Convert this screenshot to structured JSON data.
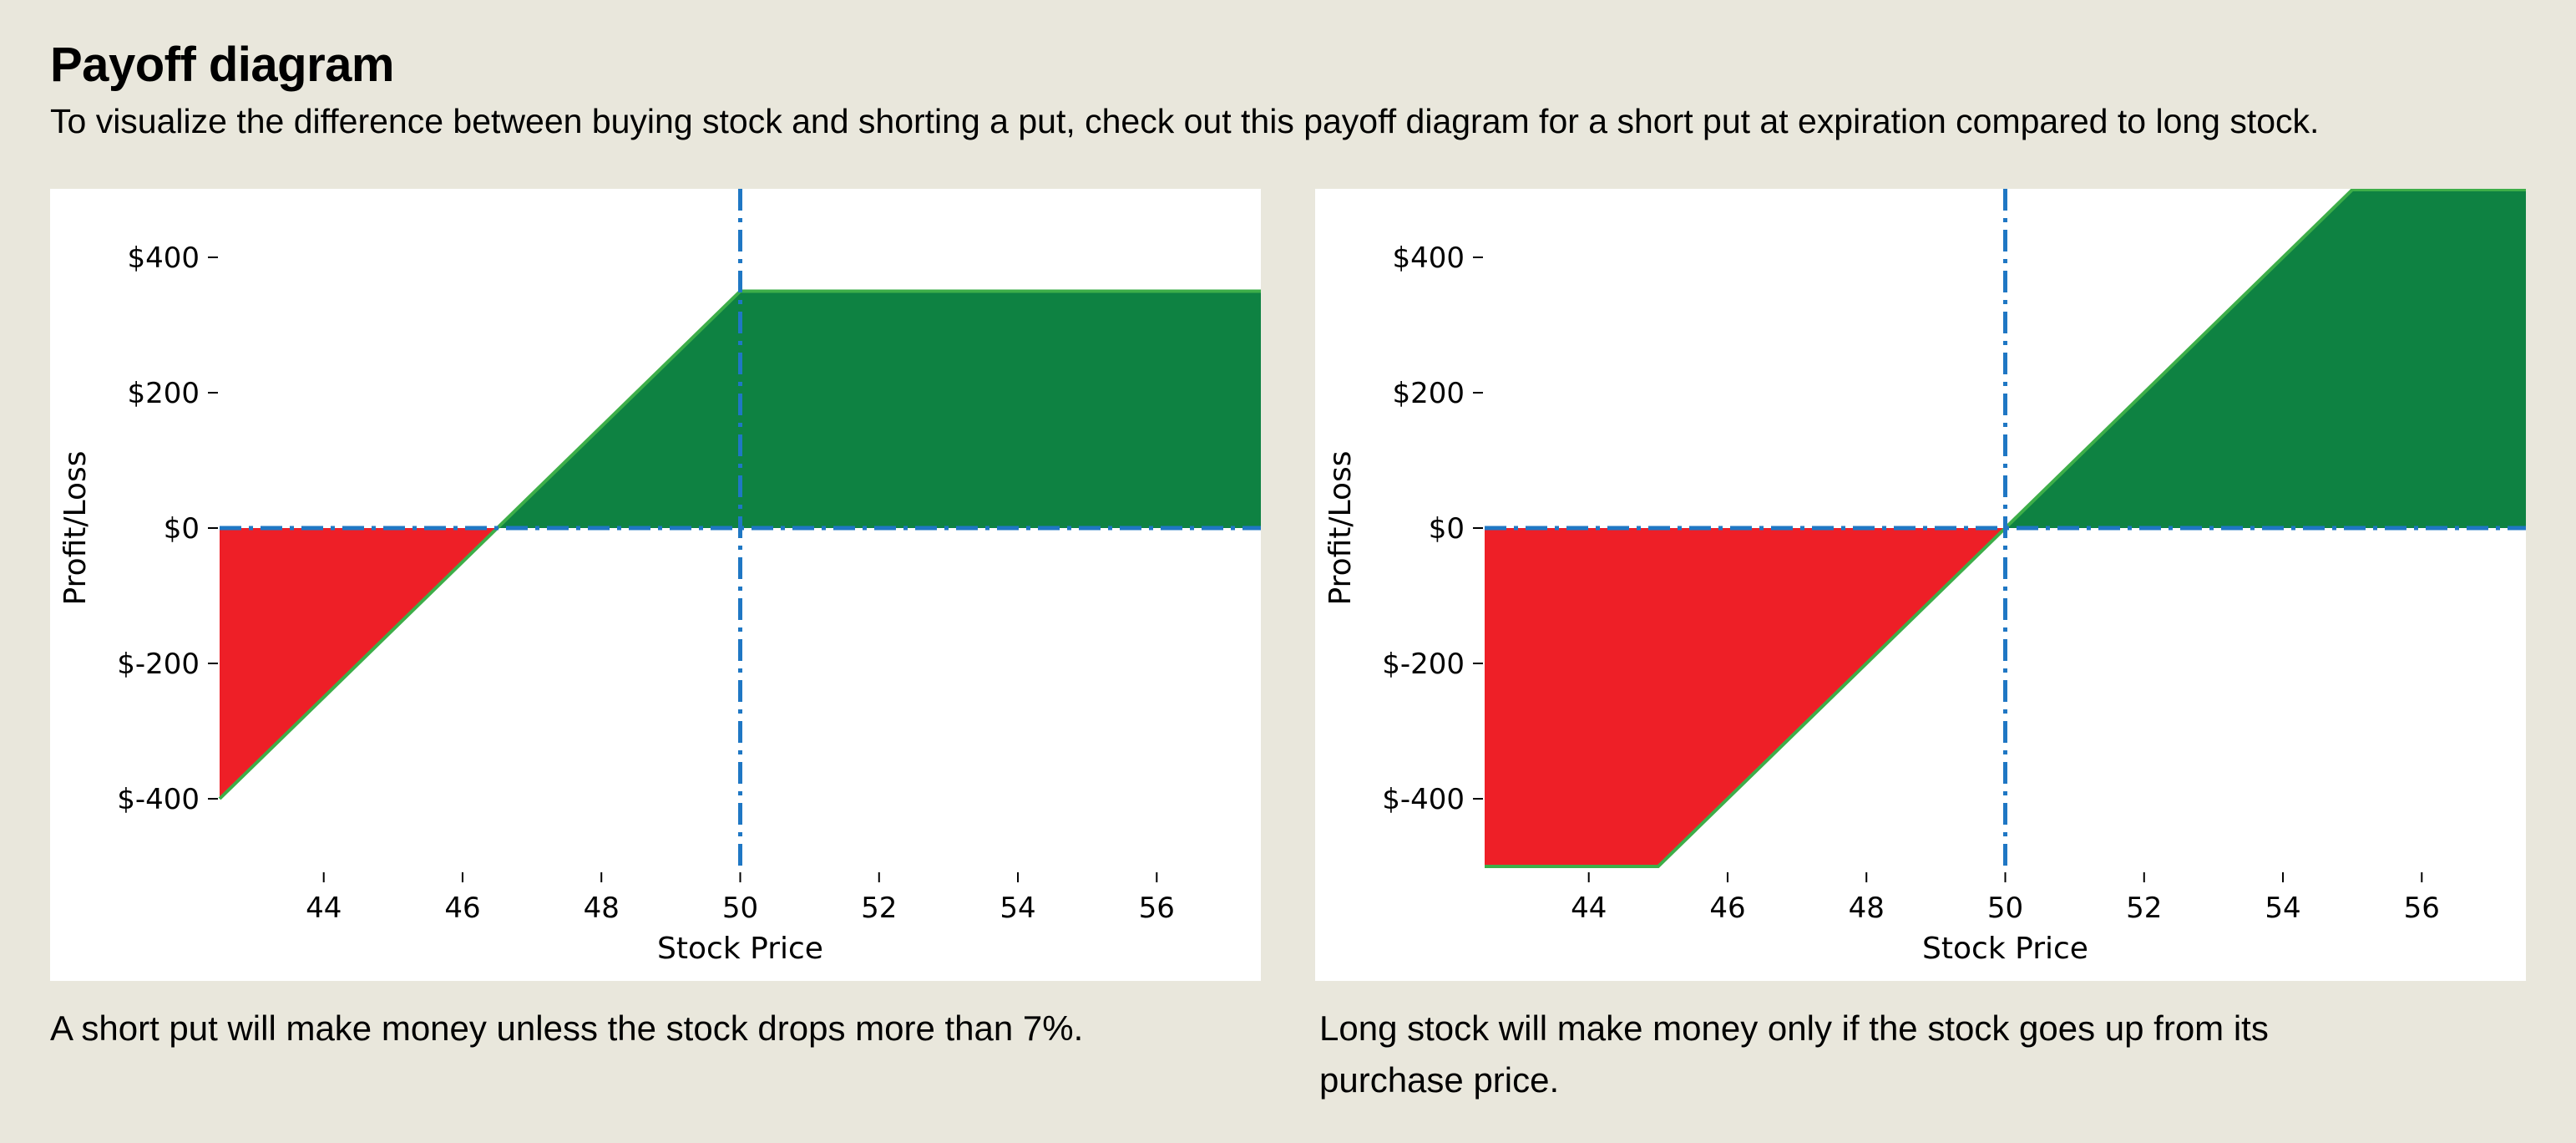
{
  "header": {
    "title": "Payoff diagram",
    "subtitle": "To visualize the difference between buying stock and shorting a put, check out this payoff diagram for a short put at expiration compared to long stock."
  },
  "colors": {
    "background": "#e9e7dc",
    "profit": "#0e8242",
    "loss": "#ee1f27",
    "payoff_line": "#3dae49",
    "reference_line": "#1f77c4"
  },
  "chart_data": [
    {
      "type": "area",
      "title": "",
      "xlabel": "Stock Price",
      "ylabel": "Profit/Loss",
      "xlim": [
        42.5,
        57.5
      ],
      "ylim": [
        -500,
        500
      ],
      "x_ticks": [
        44,
        46,
        48,
        50,
        52,
        54,
        56
      ],
      "y_ticks": [
        400,
        200,
        0,
        -200,
        -400
      ],
      "y_tick_labels": [
        "$400",
        "$200",
        "$0",
        "$-200",
        "$-400"
      ],
      "x": [
        42.5,
        46.5,
        50,
        57.5
      ],
      "y": [
        -400,
        0,
        350,
        350
      ],
      "reference_x": 50,
      "reference_y": 0,
      "grid": false,
      "caption": "A short put will make money unless the stock drops more than 7%."
    },
    {
      "type": "area",
      "title": "",
      "xlabel": "Stock Price",
      "ylabel": "Profit/Loss",
      "xlim": [
        42.5,
        57.5
      ],
      "ylim": [
        -500,
        500
      ],
      "x_ticks": [
        44,
        46,
        48,
        50,
        52,
        54,
        56
      ],
      "y_ticks": [
        400,
        200,
        0,
        -200,
        -400
      ],
      "y_tick_labels": [
        "$400",
        "$200",
        "$0",
        "$-200",
        "$-400"
      ],
      "x": [
        42.5,
        45,
        50,
        55,
        57.5
      ],
      "y": [
        -500,
        -500,
        0,
        500,
        500
      ],
      "reference_x": 50,
      "reference_y": 0,
      "grid": false,
      "caption": "Long stock will make money only if the stock goes up from its purchase price."
    }
  ]
}
